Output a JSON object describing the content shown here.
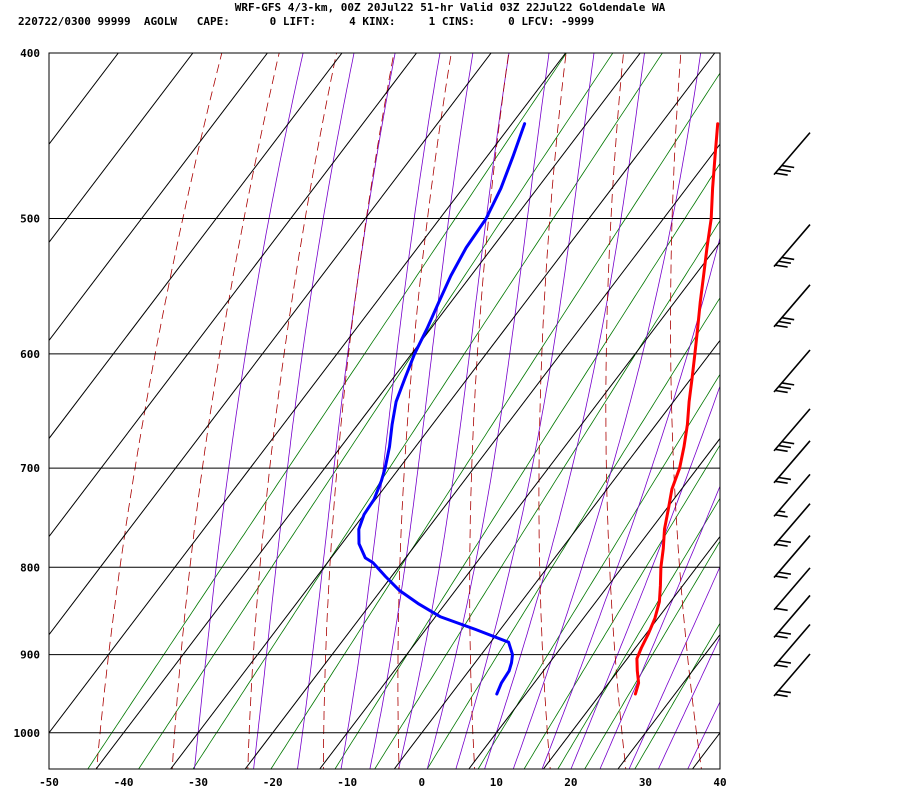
{
  "header": {
    "title": "WRF-GFS 4/3-km, 00Z 20Jul22 51-hr Valid 03Z 22Jul22 Goldendale WA",
    "stats": "220722/0300 99999  AGOLW   CAPE:      0 LIFT:     4 KINX:     1 CINS:     0 LFCV: -9999"
  },
  "colors": {
    "temperature": "#ff0000",
    "dewpoint": "#0000ff",
    "dry_adiabat": "#aa0000",
    "moist_adiabat": "#7700cc",
    "mixing_ratio": "#007700",
    "grid": "#000000"
  },
  "chart_data": {
    "type": "line",
    "title": "",
    "xlabel": "",
    "ylabel": "",
    "xlim": [
      -50,
      40
    ],
    "ylim": [
      1050,
      400
    ],
    "y_scale": "log",
    "grid": true,
    "x_ticks": [
      "-50",
      "-40",
      "-30",
      "-20",
      "-10",
      "0",
      "10",
      "20",
      "30",
      "40"
    ],
    "pressure_ticks": [
      "400",
      "500",
      "600",
      "700",
      "800",
      "900",
      "1000"
    ],
    "series": [
      {
        "pressure": [
          949,
          935,
          920,
          905,
          892,
          875,
          857,
          838,
          820,
          800,
          780,
          760,
          740,
          720,
          700,
          680,
          660,
          640,
          620,
          600,
          580,
          560,
          540,
          520,
          500,
          480,
          460,
          440
        ],
        "temperature": [
          24.7,
          24.0,
          22.6,
          21.3,
          20.8,
          20.3,
          19.6,
          18.5,
          17.0,
          15.2,
          13.6,
          11.8,
          10.3,
          8.7,
          7.6,
          6.0,
          4.2,
          2.1,
          0.1,
          -2.0,
          -4.2,
          -6.5,
          -8.8,
          -11.2,
          -13.6,
          -16.5,
          -19.4,
          -22.4
        ]
      },
      {
        "pressure": [
          949,
          935,
          920,
          910,
          900,
          885,
          870,
          855,
          840,
          825,
          810,
          795,
          790,
          775,
          760,
          745,
          730,
          712,
          700,
          680,
          660,
          640,
          620,
          600,
          580,
          560,
          540,
          520,
          500,
          480,
          460,
          440
        ],
        "temperature": [
          6.1,
          5.6,
          5.4,
          4.9,
          4.2,
          2.4,
          -3.3,
          -9.4,
          -13.7,
          -17.6,
          -20.8,
          -23.9,
          -25.4,
          -27.7,
          -29.2,
          -30.0,
          -30.2,
          -31.1,
          -31.9,
          -33.5,
          -35.4,
          -37.2,
          -38.4,
          -39.6,
          -40.5,
          -41.6,
          -42.7,
          -43.5,
          -43.8,
          -44.9,
          -46.5,
          -48.3
        ]
      }
    ],
    "wind_barbs": [
      {
        "pressure": 949,
        "barbs": "10 10"
      },
      {
        "pressure": 912,
        "barbs": "10 10"
      },
      {
        "pressure": 877,
        "barbs": "10 10"
      },
      {
        "pressure": 845,
        "barbs": "10"
      },
      {
        "pressure": 809,
        "barbs": "10 10"
      },
      {
        "pressure": 775,
        "barbs": "10 10"
      },
      {
        "pressure": 745,
        "barbs": "10 5"
      },
      {
        "pressure": 712,
        "barbs": "10 10"
      },
      {
        "pressure": 682,
        "barbs": "10 10 10"
      },
      {
        "pressure": 630,
        "barbs": "10 10 10"
      },
      {
        "pressure": 577,
        "barbs": "10 10 10"
      },
      {
        "pressure": 532,
        "barbs": "10 10 10"
      },
      {
        "pressure": 470,
        "barbs": "10 10 10"
      }
    ]
  }
}
